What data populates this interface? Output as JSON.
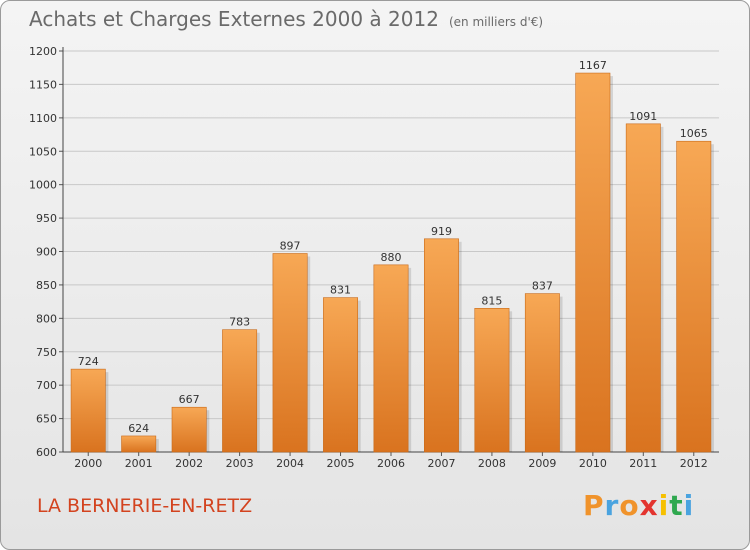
{
  "header": {
    "title": "Achats et Charges Externes 2000 à 2012",
    "subtitle": "(en milliers d'€)"
  },
  "footer": {
    "commune": "LA BERNERIE-EN-RETZ",
    "logo": {
      "letters": [
        "P",
        "r",
        "o",
        "x",
        "i",
        "t",
        "i"
      ],
      "colors": [
        "#f0932b",
        "#4aa3df",
        "#f0932b",
        "#e3342f",
        "#f6c000",
        "#2fa84f",
        "#4aa3df"
      ]
    }
  },
  "colors": {
    "bar_light": "#f7a855",
    "bar_dark": "#d9731f",
    "grid": "#c8c8c8",
    "title": "#6a6a6a",
    "commune": "#d3431f"
  },
  "chart_data": {
    "type": "bar",
    "title": "Achats et Charges Externes 2000 à 2012",
    "subtitle": "(en milliers d'€)",
    "xlabel": "",
    "ylabel": "",
    "categories": [
      "2000",
      "2001",
      "2002",
      "2003",
      "2004",
      "2005",
      "2006",
      "2007",
      "2008",
      "2009",
      "2010",
      "2011",
      "2012"
    ],
    "values": [
      724,
      624,
      667,
      783,
      897,
      831,
      880,
      919,
      815,
      837,
      1167,
      1091,
      1065
    ],
    "ylim": [
      600,
      1200
    ],
    "yticks": [
      600,
      650,
      700,
      750,
      800,
      850,
      900,
      950,
      1000,
      1050,
      1100,
      1150,
      1200
    ],
    "grid": true,
    "data_labels": true
  }
}
